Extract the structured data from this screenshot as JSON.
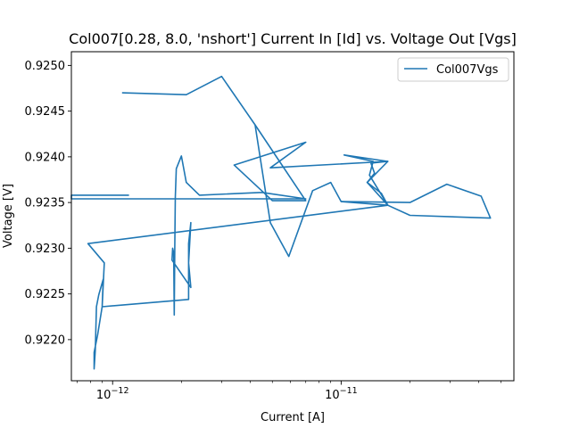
{
  "chart_data": {
    "type": "line",
    "title": "Col007[0.28, 8.0, 'nshort'] Current In [Id] vs. Voltage Out [Vgs]",
    "xlabel": "Current [A]",
    "ylabel": "Voltage [V]",
    "xscale": "log",
    "xlim": [
      6.6e-13,
      5.7e-11
    ],
    "ylim": [
      0.92155,
      0.92515
    ],
    "x_ticks": [
      {
        "value": 1e-12,
        "mantissa": "10",
        "exponent": "−12"
      },
      {
        "value": 1e-11,
        "mantissa": "10",
        "exponent": "−11"
      }
    ],
    "y_ticks": [
      "0.9220",
      "0.9225",
      "0.9230",
      "0.9235",
      "0.9240",
      "0.9245",
      "0.9250"
    ],
    "grid": false,
    "legend_position": "top-right",
    "series": [
      {
        "name": "Col007Vgs",
        "color": "#1f77b4",
        "points": [
          [
            1.18e-12,
            0.92358
          ],
          [
            6.6e-13,
            0.92358
          ],
          [
            6.6e-13,
            0.92354
          ],
          [
            7e-12,
            0.92354
          ],
          [
            4.5e-12,
            0.92361
          ],
          [
            2.4e-12,
            0.92358
          ],
          [
            2.1e-12,
            0.92372
          ],
          [
            2e-12,
            0.92401
          ],
          [
            1.9e-12,
            0.92387
          ],
          [
            1.88e-12,
            0.92356
          ],
          [
            1.87e-12,
            0.923
          ],
          [
            1.86e-12,
            0.92227
          ],
          [
            1.85e-12,
            0.92295
          ],
          [
            1.83e-12,
            0.923
          ],
          [
            1.82e-12,
            0.92287
          ],
          [
            2.2e-12,
            0.92257
          ],
          [
            2.15e-12,
            0.92284
          ],
          [
            2.2e-12,
            0.92328
          ],
          [
            2.15e-12,
            0.92305
          ],
          [
            2.15e-12,
            0.92244
          ],
          [
            9e-13,
            0.92236
          ],
          [
            9.1e-13,
            0.92266
          ],
          [
            8.7e-13,
            0.92249
          ],
          [
            8.5e-13,
            0.92236
          ],
          [
            8.4e-13,
            0.92188
          ],
          [
            8.3e-13,
            0.92168
          ],
          [
            8.3e-13,
            0.92186
          ],
          [
            8.6e-13,
            0.92205
          ],
          [
            9e-13,
            0.92236
          ],
          [
            9.2e-13,
            0.92284
          ],
          [
            7.8e-13,
            0.92305
          ],
          [
            1.6e-11,
            0.92347
          ],
          [
            1.5e-11,
            0.9236
          ],
          [
            1.3e-11,
            0.92372
          ],
          [
            1.4e-11,
            0.92382
          ],
          [
            1.35e-11,
            0.92393
          ],
          [
            1.6e-11,
            0.92395
          ],
          [
            4.9e-12,
            0.92388
          ],
          [
            7e-12,
            0.92416
          ],
          [
            3.4e-12,
            0.92391
          ],
          [
            5e-12,
            0.92352
          ],
          [
            7e-12,
            0.92352
          ],
          [
            4.2e-12,
            0.92435
          ],
          [
            3e-12,
            0.92488
          ],
          [
            2.1e-12,
            0.92468
          ],
          [
            1.1e-12,
            0.9247
          ]
        ]
      },
      {
        "name": "",
        "color": "#1f77b4",
        "points": [
          [
            1.6e-11,
            0.92347
          ],
          [
            1.33e-11,
            0.9238
          ],
          [
            1.38e-11,
            0.92395
          ],
          [
            1.03e-11,
            0.92402
          ],
          [
            1.6e-11,
            0.92395
          ],
          [
            1.3e-11,
            0.92372
          ],
          [
            1.6e-11,
            0.92347
          ],
          [
            1e-11,
            0.92351
          ],
          [
            9e-12,
            0.92372
          ],
          [
            7.5e-12,
            0.92363
          ],
          [
            5.9e-12,
            0.92291
          ],
          [
            4.9e-12,
            0.92328
          ],
          [
            4.2e-12,
            0.92435
          ]
        ]
      },
      {
        "name": "",
        "color": "#1f77b4",
        "points": [
          [
            1.6e-11,
            0.92347
          ],
          [
            2e-11,
            0.92336
          ],
          [
            4.5e-11,
            0.92333
          ],
          [
            4.1e-11,
            0.92357
          ],
          [
            2.9e-11,
            0.9237
          ],
          [
            2e-11,
            0.9235
          ],
          [
            1e-11,
            0.92351
          ]
        ]
      }
    ]
  }
}
